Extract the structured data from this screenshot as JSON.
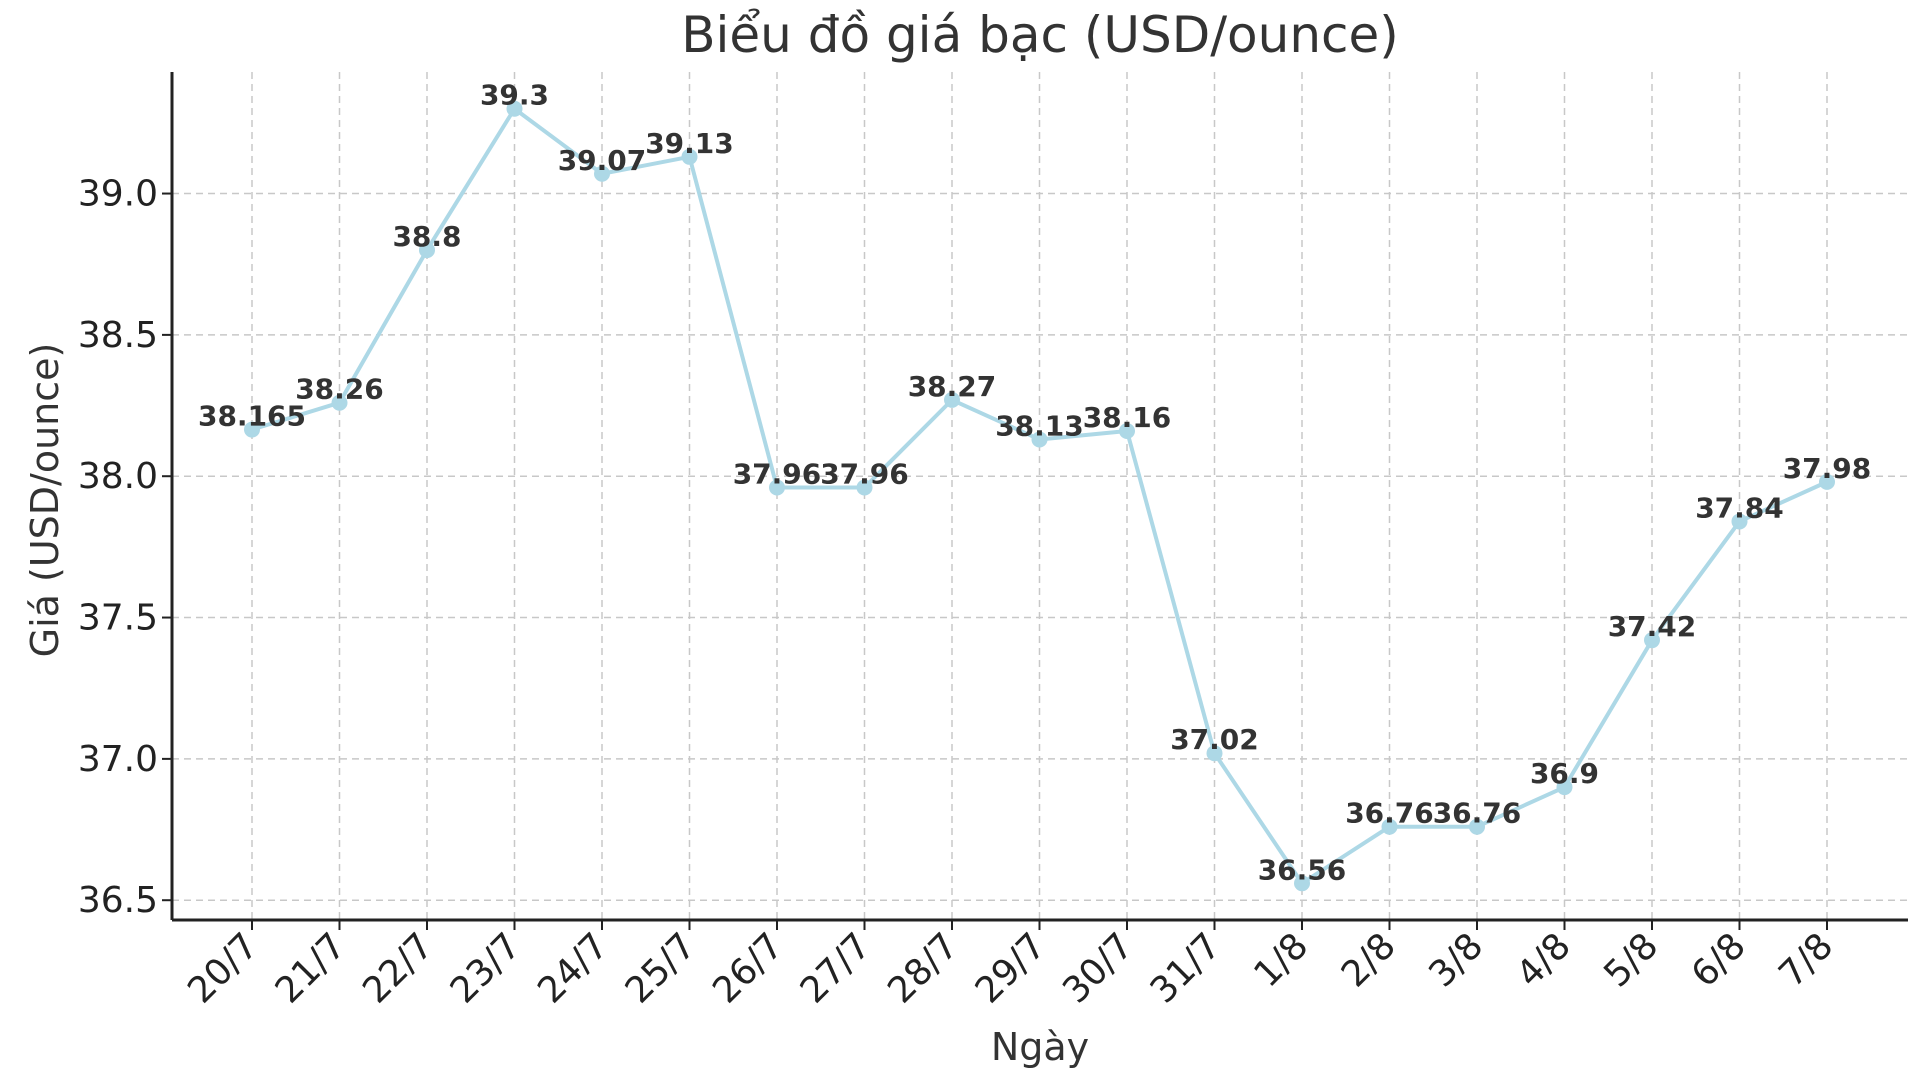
{
  "chart_data": {
    "type": "line",
    "title": "Biểu đồ giá bạc (USD/ounce)",
    "xlabel": "Ngày",
    "ylabel": "Giá (USD/ounce)",
    "categories": [
      "20/7",
      "21/7",
      "22/7",
      "23/7",
      "24/7",
      "25/7",
      "26/7",
      "27/7",
      "28/7",
      "29/7",
      "30/7",
      "31/7",
      "1/8",
      "2/8",
      "3/8",
      "4/8",
      "5/8",
      "6/8",
      "7/8"
    ],
    "values": [
      38.165,
      38.26,
      38.8,
      39.3,
      39.07,
      39.13,
      37.96,
      37.96,
      38.27,
      38.13,
      38.16,
      37.02,
      36.56,
      36.76,
      36.76,
      36.9,
      37.42,
      37.84,
      37.98
    ],
    "data_labels": [
      "38.165",
      "38.26",
      "38.8",
      "39.3",
      "39.07",
      "39.13",
      "37.96",
      "37.96",
      "38.27",
      "38.13",
      "38.16",
      "37.02",
      "36.56",
      "36.76",
      "36.76",
      "36.9",
      "37.42",
      "37.84",
      "37.98"
    ],
    "yticks": [
      "36.5",
      "37.0",
      "37.5",
      "38.0",
      "38.5",
      "39.0"
    ],
    "ylim": [
      36.43,
      39.43
    ],
    "grid": true,
    "color": "#ADD8E6"
  }
}
